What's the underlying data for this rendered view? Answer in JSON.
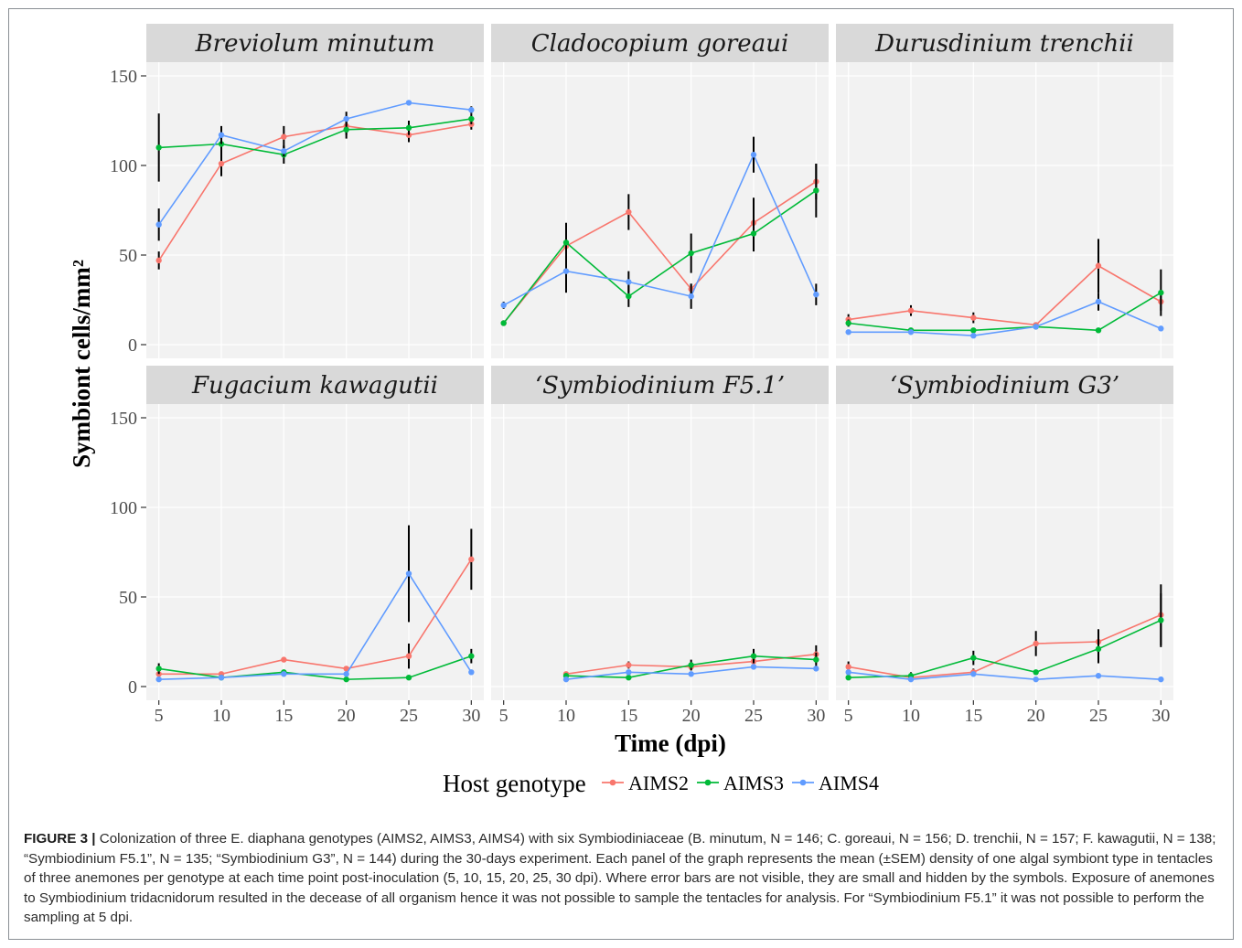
{
  "chart_data": {
    "type": "line",
    "facet_layout": "2 rows x 3 columns",
    "ylabel": "Symbiont cells/mm²",
    "xlabel": "Time (dpi)",
    "x_ticks": [
      5,
      10,
      15,
      20,
      25,
      30
    ],
    "y_ticks": [
      0,
      50,
      100,
      150
    ],
    "xlim": [
      4,
      31
    ],
    "ylim": [
      -8,
      150
    ],
    "legend": {
      "title": "Host genotype",
      "position": "bottom"
    },
    "series_styles": [
      {
        "name": "AIMS2",
        "color": "#F8766D"
      },
      {
        "name": "AIMS3",
        "color": "#00BA38"
      },
      {
        "name": "AIMS4",
        "color": "#619CFF"
      }
    ],
    "panels": [
      {
        "title": "Breviolum minutum",
        "series": [
          {
            "name": "AIMS2",
            "x": [
              5,
              10,
              15,
              20,
              25,
              30
            ],
            "y": [
              47,
              101,
              116,
              122,
              117,
              123
            ],
            "sem": [
              5,
              7,
              6,
              5,
              4,
              3
            ]
          },
          {
            "name": "AIMS3",
            "x": [
              5,
              10,
              15,
              20,
              25,
              30
            ],
            "y": [
              110,
              112,
              106,
              120,
              121,
              126
            ],
            "sem": [
              19,
              6,
              5,
              5,
              4,
              3
            ]
          },
          {
            "name": "AIMS4",
            "x": [
              5,
              10,
              15,
              20,
              25,
              30
            ],
            "y": [
              67,
              117,
              108,
              126,
              135,
              131
            ],
            "sem": [
              9,
              5,
              3,
              4,
              1,
              2
            ]
          }
        ]
      },
      {
        "title": "Cladocopium goreaui",
        "series": [
          {
            "name": "AIMS2",
            "x": [
              5,
              10,
              15,
              20,
              25,
              30
            ],
            "y": [
              12,
              55,
              74,
              31,
              68,
              91
            ],
            "sem": [
              1,
              11,
              10,
              3,
              14,
              10
            ]
          },
          {
            "name": "AIMS3",
            "x": [
              5,
              10,
              15,
              20,
              25,
              30
            ],
            "y": [
              12,
              57,
              27,
              51,
              62,
              86
            ],
            "sem": [
              1,
              11,
              6,
              11,
              10,
              15
            ]
          },
          {
            "name": "AIMS4",
            "x": [
              5,
              10,
              15,
              20,
              25,
              30
            ],
            "y": [
              22,
              41,
              35,
              27,
              106,
              28
            ],
            "sem": [
              2,
              12,
              6,
              7,
              10,
              6
            ]
          }
        ]
      },
      {
        "title": "Durusdinium trenchii",
        "series": [
          {
            "name": "AIMS2",
            "x": [
              5,
              10,
              15,
              20,
              25,
              30
            ],
            "y": [
              14,
              19,
              15,
              11,
              44,
              24
            ],
            "sem": [
              3,
              3,
              3,
              1,
              15,
              5
            ]
          },
          {
            "name": "AIMS3",
            "x": [
              5,
              10,
              15,
              20,
              25,
              30
            ],
            "y": [
              12,
              8,
              8,
              10,
              8,
              29
            ],
            "sem": [
              2,
              1,
              1,
              1,
              1,
              13
            ]
          },
          {
            "name": "AIMS4",
            "x": [
              5,
              10,
              15,
              20,
              25,
              30
            ],
            "y": [
              7,
              7,
              5,
              10,
              24,
              9
            ],
            "sem": [
              1,
              1,
              1,
              1,
              5,
              1
            ]
          }
        ]
      },
      {
        "title": "Fugacium kawagutii",
        "series": [
          {
            "name": "AIMS2",
            "x": [
              5,
              10,
              15,
              20,
              25,
              30
            ],
            "y": [
              7,
              7,
              15,
              10,
              17,
              71
            ],
            "sem": [
              2,
              1,
              1,
              1,
              7,
              17
            ]
          },
          {
            "name": "AIMS3",
            "x": [
              5,
              10,
              15,
              20,
              25,
              30
            ],
            "y": [
              10,
              5,
              8,
              4,
              5,
              17
            ],
            "sem": [
              3,
              1,
              1,
              1,
              1,
              4
            ]
          },
          {
            "name": "AIMS4",
            "x": [
              5,
              10,
              15,
              20,
              25,
              30
            ],
            "y": [
              4,
              5,
              7,
              7,
              63,
              8
            ],
            "sem": [
              1,
              1,
              1,
              1,
              27,
              1
            ]
          }
        ]
      },
      {
        "title": "‘Symbiodinium F5.1’",
        "series": [
          {
            "name": "AIMS2",
            "x": [
              10,
              15,
              20,
              25,
              30
            ],
            "y": [
              7,
              12,
              11,
              14,
              18
            ],
            "sem": [
              1,
              2,
              2,
              2,
              5
            ]
          },
          {
            "name": "AIMS3",
            "x": [
              10,
              15,
              20,
              25,
              30
            ],
            "y": [
              6,
              5,
              12,
              17,
              15
            ],
            "sem": [
              1,
              1,
              3,
              4,
              4
            ]
          },
          {
            "name": "AIMS4",
            "x": [
              10,
              15,
              20,
              25,
              30
            ],
            "y": [
              4,
              8,
              7,
              11,
              10
            ],
            "sem": [
              1,
              1,
              1,
              1,
              1
            ]
          }
        ]
      },
      {
        "title": "‘Symbiodinium G3’",
        "series": [
          {
            "name": "AIMS2",
            "x": [
              5,
              10,
              15,
              20,
              25,
              30
            ],
            "y": [
              11,
              5,
              8,
              24,
              25,
              40
            ],
            "sem": [
              3,
              1,
              2,
              7,
              7,
              17
            ]
          },
          {
            "name": "AIMS3",
            "x": [
              5,
              10,
              15,
              20,
              25,
              30
            ],
            "y": [
              5,
              6,
              16,
              8,
              21,
              37
            ],
            "sem": [
              1,
              2,
              4,
              1,
              8,
              15
            ]
          },
          {
            "name": "AIMS4",
            "x": [
              5,
              10,
              15,
              20,
              25,
              30
            ],
            "y": [
              8,
              4,
              7,
              4,
              6,
              4
            ],
            "sem": [
              1,
              1,
              1,
              1,
              1,
              1
            ]
          }
        ]
      }
    ]
  },
  "caption": {
    "label": "FIGURE 3",
    "separator": "|",
    "text": "Colonization of three E. diaphana genotypes (AIMS2, AIMS3, AIMS4) with six Symbiodiniaceae (B. minutum, N = 146; C. goreaui, N = 156; D. trenchii, N = 157; F. kawagutii, N = 138; “Symbiodinium F5.1”, N = 135; “Symbiodinium G3”, N = 144) during the 30-days experiment. Each panel of the graph represents the mean (±SEM) density of one algal symbiont type in tentacles of three anemones per genotype at each time point post-inoculation (5, 10, 15, 20, 25, 30 dpi). Where error bars are not visible, they are small and hidden by the symbols. Exposure of anemones to Symbiodinium tridacnidorum resulted in the decease of all organism hence it was not possible to sample the tentacles for analysis. For “Symbiodinium F5.1” it was not possible to perform the sampling at 5 dpi."
  }
}
